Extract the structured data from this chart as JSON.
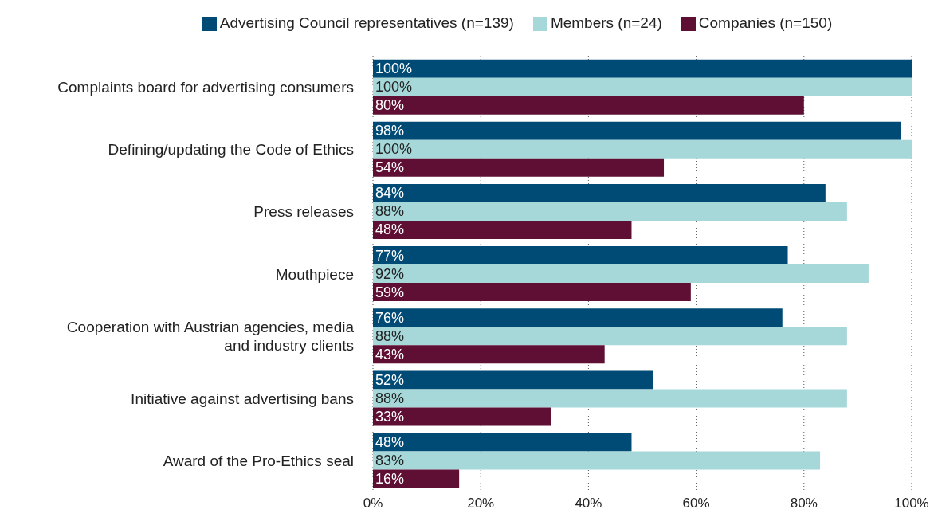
{
  "chart_data": {
    "type": "bar",
    "orientation": "horizontal",
    "categories": [
      "Complaints board for advertising consumers",
      "Defining/updating the Code of Ethics",
      "Press releases",
      "Mouthpiece",
      "Cooperation with Austrian agencies, media and industry clients",
      "Initiative against advertising bans",
      "Award of the Pro-Ethics seal"
    ],
    "series": [
      {
        "name": "Advertising Council representatives (n=139)",
        "color": "#004b75",
        "values": [
          100,
          98,
          84,
          77,
          76,
          52,
          48
        ],
        "value_labels": [
          "100%",
          "98%",
          "84%",
          "77%",
          "76%",
          "52%",
          "48%"
        ]
      },
      {
        "name": "Members (n=24)",
        "color": "#a6d8da",
        "values": [
          100,
          100,
          88,
          92,
          88,
          88,
          83
        ],
        "value_labels": [
          "100%",
          "100%",
          "88%",
          "92%",
          "88%",
          "88%",
          "83%"
        ]
      },
      {
        "name": "Companies (n=150)",
        "color": "#5e0f33",
        "values": [
          80,
          54,
          48,
          59,
          43,
          33,
          16
        ],
        "value_labels": [
          "80%",
          "54%",
          "48%",
          "59%",
          "43%",
          "33%",
          "16%"
        ]
      }
    ],
    "xlim": [
      0,
      100
    ],
    "xticks": [
      {
        "value": 0,
        "label": "0%"
      },
      {
        "value": 20,
        "label": "20%"
      },
      {
        "value": 40,
        "label": "40%"
      },
      {
        "value": 60,
        "label": "60%"
      },
      {
        "value": 80,
        "label": "80%"
      },
      {
        "value": 100,
        "label": "100%"
      }
    ],
    "grid": "x",
    "legend": "top"
  }
}
